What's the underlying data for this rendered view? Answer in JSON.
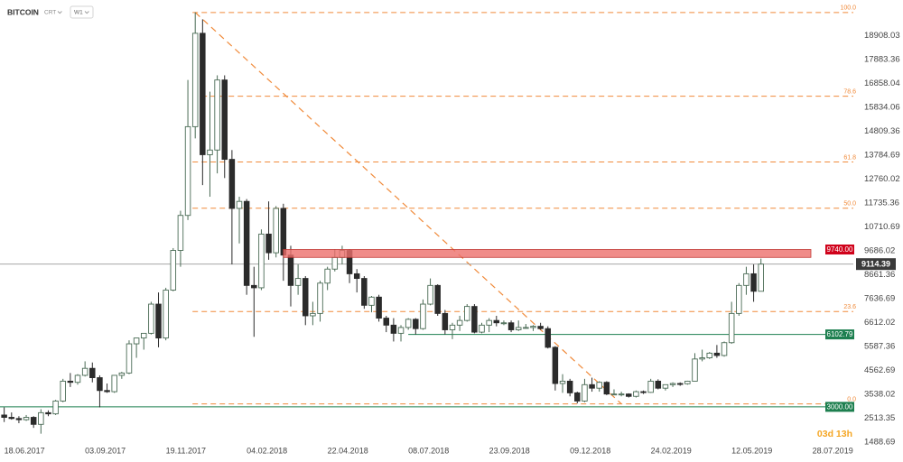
{
  "chart_data": {
    "type": "candlestick",
    "title": "BITCOIN",
    "instrument_type": "CRT",
    "timeframe": "W1",
    "countdown": "03d 13h",
    "x": [
      "18.06.2017",
      "25.06.2017",
      "02.07.2017",
      "09.07.2017",
      "16.07.2017",
      "23.07.2017",
      "30.07.2017",
      "06.08.2017",
      "13.08.2017",
      "20.08.2017",
      "27.08.2017",
      "03.09.2017",
      "10.09.2017",
      "17.09.2017",
      "24.09.2017",
      "01.10.2017",
      "08.10.2017",
      "15.10.2017",
      "22.10.2017",
      "29.10.2017",
      "05.11.2017",
      "12.11.2017",
      "19.11.2017",
      "26.11.2017",
      "03.12.2017",
      "10.12.2017",
      "17.12.2017",
      "24.12.2017",
      "31.12.2017",
      "07.01.2018",
      "14.01.2018",
      "21.01.2018",
      "28.01.2018",
      "04.02.2018",
      "11.02.2018",
      "18.02.2018",
      "25.02.2018",
      "04.03.2018",
      "11.03.2018",
      "18.03.2018",
      "25.03.2018",
      "01.04.2018",
      "08.04.2018",
      "15.04.2018",
      "22.04.2018",
      "29.04.2018",
      "06.05.2018",
      "13.05.2018",
      "20.05.2018",
      "27.05.2018",
      "03.06.2018",
      "10.06.2018",
      "17.06.2018",
      "24.06.2018",
      "01.07.2018",
      "08.07.2018",
      "15.07.2018",
      "22.07.2018",
      "29.07.2018",
      "05.08.2018",
      "12.08.2018",
      "19.08.2018",
      "26.08.2018",
      "02.09.2018",
      "09.09.2018",
      "16.09.2018",
      "23.09.2018",
      "30.09.2018",
      "07.10.2018",
      "14.10.2018",
      "21.10.2018",
      "28.10.2018",
      "04.11.2018",
      "11.11.2018",
      "18.11.2018",
      "25.11.2018",
      "02.12.2018",
      "09.12.2018",
      "16.12.2018",
      "23.12.2018",
      "30.12.2018",
      "06.01.2019",
      "13.01.2019",
      "20.01.2019",
      "27.01.2019",
      "03.02.2019",
      "10.02.2019",
      "17.02.2019",
      "24.02.2019",
      "03.03.2019",
      "10.03.2019",
      "17.03.2019",
      "24.03.2019",
      "31.03.2019",
      "07.04.2019",
      "14.04.2019",
      "21.04.2019",
      "28.04.2019",
      "05.05.2019",
      "12.05.2019",
      "19.05.2019",
      "26.05.2019",
      "02.06.2019",
      "09.06.2019"
    ],
    "candles": [
      [
        2650,
        2980,
        2350,
        2550
      ],
      [
        2550,
        2760,
        2450,
        2500
      ],
      [
        2500,
        2600,
        2300,
        2450
      ],
      [
        2450,
        2650,
        2400,
        2550
      ],
      [
        2550,
        2600,
        2100,
        2250
      ],
      [
        2250,
        2900,
        1850,
        2750
      ],
      [
        2750,
        2850,
        2600,
        2700
      ],
      [
        2700,
        3300,
        2650,
        3250
      ],
      [
        3250,
        4200,
        3200,
        4100
      ],
      [
        4100,
        4450,
        3850,
        4050
      ],
      [
        4050,
        4400,
        3950,
        4350
      ],
      [
        4350,
        4950,
        4300,
        4650
      ],
      [
        4650,
        4900,
        4050,
        4250
      ],
      [
        4250,
        4350,
        2980,
        3700
      ],
      [
        3700,
        4000,
        3600,
        3650
      ],
      [
        3650,
        4350,
        3600,
        4350
      ],
      [
        4350,
        4500,
        4200,
        4450
      ],
      [
        4450,
        5850,
        4400,
        5700
      ],
      [
        5700,
        5950,
        5100,
        5950
      ],
      [
        5950,
        6150,
        5450,
        6150
      ],
      [
        6150,
        7500,
        6100,
        7400
      ],
      [
        7400,
        7900,
        5550,
        5950
      ],
      [
        5950,
        8100,
        5850,
        8000
      ],
      [
        8000,
        9800,
        7950,
        9700
      ],
      [
        9700,
        11400,
        9000,
        11200
      ],
      [
        11200,
        17000,
        11000,
        15000
      ],
      [
        15000,
        19900,
        14500,
        19000
      ],
      [
        19000,
        19600,
        12500,
        13800
      ],
      [
        13800,
        16500,
        12000,
        14000
      ],
      [
        14000,
        17200,
        13000,
        17000
      ],
      [
        17000,
        17200,
        12800,
        13600
      ],
      [
        13600,
        14000,
        9100,
        11500
      ],
      [
        11500,
        12000,
        10000,
        11800
      ],
      [
        11800,
        11900,
        7800,
        8200
      ],
      [
        8200,
        9000,
        6000,
        8100
      ],
      [
        8100,
        10600,
        8000,
        10400
      ],
      [
        10400,
        11800,
        9300,
        9600
      ],
      [
        9600,
        11600,
        9400,
        11500
      ],
      [
        11500,
        11700,
        8400,
        9500
      ],
      [
        9500,
        9900,
        7300,
        8200
      ],
      [
        8200,
        9100,
        7800,
        8500
      ],
      [
        8500,
        8600,
        6500,
        6900
      ],
      [
        6900,
        7500,
        6500,
        7000
      ],
      [
        7000,
        8400,
        6650,
        8300
      ],
      [
        8300,
        9000,
        8000,
        8900
      ],
      [
        8900,
        9750,
        8800,
        9400
      ],
      [
        9400,
        9900,
        9100,
        9700
      ],
      [
        9700,
        9750,
        8300,
        8700
      ],
      [
        8700,
        8900,
        7900,
        8500
      ],
      [
        8500,
        8600,
        7200,
        7350
      ],
      [
        7350,
        7750,
        7050,
        7700
      ],
      [
        7700,
        7800,
        6650,
        6800
      ],
      [
        6800,
        6900,
        6200,
        6500
      ],
      [
        6500,
        6800,
        5800,
        6150
      ],
      [
        6150,
        6500,
        5800,
        6400
      ],
      [
        6400,
        6800,
        6300,
        6750
      ],
      [
        6750,
        6800,
        6100,
        6350
      ],
      [
        6350,
        7600,
        6300,
        7400
      ],
      [
        7400,
        8500,
        7350,
        8200
      ],
      [
        8200,
        8250,
        6900,
        7000
      ],
      [
        7000,
        7150,
        6100,
        6300
      ],
      [
        6300,
        6600,
        5900,
        6500
      ],
      [
        6500,
        6900,
        6250,
        6700
      ],
      [
        6700,
        7400,
        6650,
        7300
      ],
      [
        7300,
        7400,
        6150,
        6200
      ],
      [
        6200,
        6600,
        6150,
        6500
      ],
      [
        6500,
        6800,
        6200,
        6700
      ],
      [
        6700,
        6900,
        6450,
        6600
      ],
      [
        6600,
        6700,
        6500,
        6600
      ],
      [
        6600,
        6700,
        6200,
        6300
      ],
      [
        6300,
        6700,
        6250,
        6400
      ],
      [
        6400,
        6550,
        6350,
        6400
      ],
      [
        6400,
        6500,
        6250,
        6450
      ],
      [
        6450,
        6600,
        6300,
        6350
      ],
      [
        6350,
        6450,
        5500,
        5550
      ],
      [
        5550,
        5600,
        3700,
        4000
      ],
      [
        4000,
        4400,
        3600,
        4100
      ],
      [
        4100,
        4200,
        3450,
        3600
      ],
      [
        3600,
        3650,
        3150,
        3250
      ],
      [
        3250,
        4200,
        3200,
        3950
      ],
      [
        3950,
        4250,
        3650,
        3800
      ],
      [
        3800,
        4100,
        3650,
        4050
      ],
      [
        4050,
        4100,
        3500,
        3550
      ],
      [
        3550,
        3750,
        3500,
        3550
      ],
      [
        3550,
        3650,
        3450,
        3550
      ],
      [
        3550,
        3580,
        3400,
        3450
      ],
      [
        3450,
        3700,
        3400,
        3650
      ],
      [
        3650,
        3700,
        3550,
        3620
      ],
      [
        3620,
        4200,
        3600,
        4100
      ],
      [
        4100,
        4180,
        3750,
        3800
      ],
      [
        3800,
        3950,
        3700,
        3950
      ],
      [
        3950,
        4050,
        3850,
        4000
      ],
      [
        4000,
        4050,
        3900,
        3990
      ],
      [
        3990,
        4120,
        3950,
        4100
      ],
      [
        4100,
        5300,
        4100,
        5050
      ],
      [
        5050,
        5450,
        4950,
        5100
      ],
      [
        5100,
        5350,
        5050,
        5300
      ],
      [
        5300,
        5650,
        5100,
        5200
      ],
      [
        5200,
        5800,
        5150,
        5750
      ],
      [
        5750,
        7500,
        5700,
        7000
      ],
      [
        7000,
        8300,
        6900,
        8200
      ],
      [
        8200,
        9000,
        7800,
        8700
      ],
      [
        8700,
        9100,
        7500,
        7950
      ],
      [
        7950,
        9350,
        7950,
        9114.39
      ]
    ],
    "colors": {
      "up": "#ffffff",
      "up_border": "#4a6b55",
      "down": "#2b2b2b"
    },
    "xlim": [
      "14.06.2017",
      "05.09.2019"
    ],
    "xticks": [
      "18.06.2017",
      "03.09.2017",
      "19.11.2017",
      "04.02.2018",
      "22.04.2018",
      "08.07.2018",
      "23.09.2018",
      "09.12.2018",
      "24.02.2019",
      "12.05.2019",
      "28.07.2019"
    ],
    "ylim": [
      1102,
      20426
    ],
    "yticks": [
      18908.03,
      17883.36,
      16858.04,
      15834.06,
      14809.36,
      13784.69,
      12760.02,
      11735.36,
      10710.69,
      9686.02,
      8661.36,
      7636.69,
      6612.02,
      5587.36,
      4562.69,
      3538.02,
      2513.35,
      1488.69
    ],
    "current_price": 9114.39,
    "zone": {
      "top": {
        "value": 9740,
        "label": "9740.00"
      },
      "bottom": 9400,
      "start": "11.03.2018",
      "color": "#d0021b"
    },
    "levels": [
      {
        "value": 6102.79,
        "start": "08.07.2018",
        "color": "#1d7f4f"
      },
      {
        "value": {
          "value": 3000,
          "label": "3000.00"
        },
        "start": "14.06.2017",
        "color": "#1d7f4f"
      }
    ],
    "fib": {
      "high": 19891,
      "low": 3128,
      "start": "17.12.2017",
      "end": "27.01.2019",
      "color": "#f08a3a",
      "levels": [
        {
          "value": 100,
          "label": "100.0"
        },
        {
          "value": 78.6,
          "label": "78.6"
        },
        {
          "value": 61.8,
          "label": "61.8"
        },
        {
          "value": 50,
          "label": "50.0"
        },
        {
          "value": 23.6,
          "label": "23.6"
        },
        {
          "value": 0,
          "label": "0.0"
        }
      ]
    }
  }
}
